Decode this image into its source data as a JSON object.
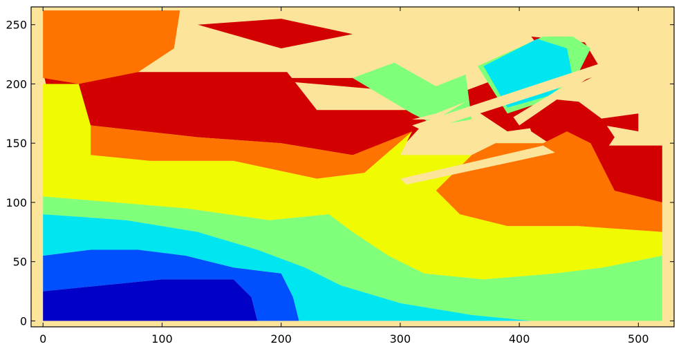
{
  "chart_data": {
    "type": "heatmap",
    "title": "",
    "xlabel": "",
    "ylabel": "",
    "xlim": [
      -10,
      530
    ],
    "ylim": [
      -5,
      265
    ],
    "grid": false,
    "x_ticks": [
      0,
      100,
      200,
      300,
      400,
      500
    ],
    "y_ticks": [
      0,
      50,
      100,
      150,
      200,
      250
    ],
    "background_color": "#fde49b",
    "colormap": "jet",
    "levels": [
      {
        "name": "level-1",
        "color": "#0000c8"
      },
      {
        "name": "level-2",
        "color": "#0050ff"
      },
      {
        "name": "level-3",
        "color": "#00e6f0"
      },
      {
        "name": "level-4",
        "color": "#80ff7a"
      },
      {
        "name": "level-5",
        "color": "#f0fa00"
      },
      {
        "name": "level-6",
        "color": "#ff7300"
      },
      {
        "name": "level-7",
        "color": "#d20000"
      }
    ],
    "regions": [
      {
        "level": 7,
        "points": [
          [
            0,
            210
          ],
          [
            205,
            210
          ],
          [
            230,
            178
          ],
          [
            330,
            178
          ],
          [
            300,
            145
          ],
          [
            260,
            140
          ],
          [
            200,
            150
          ],
          [
            130,
            155
          ],
          [
            40,
            165
          ],
          [
            5,
            190
          ]
        ]
      },
      {
        "level": 7,
        "points": [
          [
            170,
            205
          ],
          [
            300,
            205
          ],
          [
            330,
            185
          ],
          [
            410,
            215
          ],
          [
            415,
            175
          ],
          [
            500,
            160
          ],
          [
            500,
            175
          ],
          [
            390,
            160
          ],
          [
            345,
            190
          ]
        ]
      },
      {
        "level": 7,
        "points": [
          [
            130,
            250
          ],
          [
            200,
            255
          ],
          [
            260,
            242
          ],
          [
            200,
            230
          ]
        ]
      },
      {
        "level": 7,
        "points": [
          [
            400,
            190
          ],
          [
            450,
            185
          ],
          [
            470,
            170
          ],
          [
            480,
            155
          ],
          [
            470,
            140
          ],
          [
            440,
            140
          ],
          [
            410,
            160
          ]
        ]
      },
      {
        "level": 7,
        "points": [
          [
            420,
            148
          ],
          [
            520,
            148
          ],
          [
            520,
            100
          ],
          [
            470,
            100
          ],
          [
            430,
            110
          ]
        ]
      },
      {
        "level": 7,
        "points": [
          [
            410,
            240
          ],
          [
            455,
            235
          ],
          [
            470,
            210
          ],
          [
            450,
            200
          ],
          [
            430,
            215
          ]
        ]
      },
      {
        "level": 6,
        "points": [
          [
            0,
            262
          ],
          [
            115,
            262
          ],
          [
            110,
            230
          ],
          [
            80,
            210
          ],
          [
            30,
            200
          ],
          [
            0,
            205
          ]
        ]
      },
      {
        "level": 6,
        "points": [
          [
            40,
            165
          ],
          [
            130,
            155
          ],
          [
            200,
            150
          ],
          [
            260,
            140
          ],
          [
            310,
            160
          ],
          [
            270,
            125
          ],
          [
            230,
            120
          ],
          [
            160,
            135
          ],
          [
            90,
            135
          ],
          [
            40,
            140
          ]
        ]
      },
      {
        "level": 6,
        "points": [
          [
            380,
            150
          ],
          [
            420,
            150
          ],
          [
            440,
            160
          ],
          [
            460,
            150
          ],
          [
            480,
            110
          ],
          [
            520,
            100
          ],
          [
            520,
            75
          ],
          [
            450,
            80
          ],
          [
            390,
            80
          ],
          [
            350,
            90
          ],
          [
            330,
            110
          ],
          [
            360,
            140
          ]
        ]
      },
      {
        "level": 5,
        "points": [
          [
            0,
            200
          ],
          [
            30,
            200
          ],
          [
            40,
            165
          ],
          [
            40,
            140
          ],
          [
            90,
            135
          ],
          [
            160,
            135
          ],
          [
            230,
            120
          ],
          [
            270,
            125
          ],
          [
            310,
            160
          ],
          [
            300,
            140
          ],
          [
            270,
            115
          ],
          [
            240,
            90
          ],
          [
            190,
            85
          ],
          [
            120,
            95
          ],
          [
            60,
            100
          ],
          [
            0,
            105
          ]
        ]
      },
      {
        "level": 5,
        "points": [
          [
            270,
            125
          ],
          [
            300,
            140
          ],
          [
            340,
            140
          ],
          [
            360,
            140
          ],
          [
            330,
            110
          ],
          [
            350,
            90
          ],
          [
            390,
            80
          ],
          [
            450,
            80
          ],
          [
            520,
            75
          ],
          [
            520,
            55
          ],
          [
            470,
            45
          ],
          [
            430,
            40
          ],
          [
            370,
            35
          ],
          [
            320,
            40
          ],
          [
            290,
            55
          ],
          [
            260,
            75
          ],
          [
            240,
            90
          ]
        ]
      },
      {
        "level": 4,
        "points": [
          [
            0,
            105
          ],
          [
            60,
            100
          ],
          [
            120,
            95
          ],
          [
            190,
            85
          ],
          [
            240,
            90
          ],
          [
            260,
            75
          ],
          [
            290,
            55
          ],
          [
            320,
            40
          ],
          [
            370,
            35
          ],
          [
            430,
            40
          ],
          [
            470,
            45
          ],
          [
            520,
            55
          ],
          [
            520,
            0
          ],
          [
            410,
            0
          ],
          [
            360,
            5
          ],
          [
            300,
            15
          ],
          [
            250,
            30
          ],
          [
            220,
            45
          ],
          [
            180,
            60
          ],
          [
            130,
            75
          ],
          [
            70,
            85
          ],
          [
            0,
            90
          ]
        ]
      },
      {
        "level": 4,
        "points": [
          [
            260,
            205
          ],
          [
            295,
            218
          ],
          [
            330,
            198
          ],
          [
            355,
            208
          ],
          [
            360,
            170
          ],
          [
            330,
            165
          ],
          [
            310,
            175
          ]
        ]
      },
      {
        "level": 4,
        "points": [
          [
            365,
            215
          ],
          [
            420,
            240
          ],
          [
            445,
            240
          ],
          [
            460,
            230
          ],
          [
            445,
            200
          ],
          [
            420,
            185
          ],
          [
            390,
            175
          ]
        ]
      },
      {
        "level": 3,
        "points": [
          [
            0,
            90
          ],
          [
            70,
            85
          ],
          [
            130,
            75
          ],
          [
            180,
            60
          ],
          [
            220,
            45
          ],
          [
            250,
            30
          ],
          [
            300,
            15
          ],
          [
            360,
            5
          ],
          [
            410,
            0
          ],
          [
            215,
            0
          ],
          [
            210,
            20
          ],
          [
            200,
            40
          ],
          [
            160,
            45
          ],
          [
            120,
            55
          ],
          [
            80,
            60
          ],
          [
            40,
            60
          ],
          [
            0,
            55
          ]
        ]
      },
      {
        "level": 3,
        "points": [
          [
            370,
            215
          ],
          [
            415,
            238
          ],
          [
            440,
            230
          ],
          [
            445,
            205
          ],
          [
            425,
            190
          ],
          [
            390,
            180
          ]
        ]
      },
      {
        "level": 2,
        "points": [
          [
            0,
            55
          ],
          [
            40,
            60
          ],
          [
            80,
            60
          ],
          [
            120,
            55
          ],
          [
            160,
            45
          ],
          [
            200,
            40
          ],
          [
            210,
            20
          ],
          [
            215,
            0
          ],
          [
            180,
            0
          ],
          [
            175,
            20
          ],
          [
            160,
            35
          ],
          [
            100,
            35
          ],
          [
            50,
            30
          ],
          [
            0,
            25
          ]
        ]
      },
      {
        "level": 1,
        "points": [
          [
            0,
            25
          ],
          [
            50,
            30
          ],
          [
            100,
            35
          ],
          [
            160,
            35
          ],
          [
            175,
            20
          ],
          [
            180,
            0
          ],
          [
            0,
            0
          ]
        ]
      }
    ],
    "gaps": [
      {
        "points": [
          [
            310,
            170
          ],
          [
            330,
            170
          ],
          [
            355,
            185
          ],
          [
            330,
            175
          ]
        ]
      },
      {
        "points": [
          [
            310,
            165
          ],
          [
            470,
            218
          ],
          [
            475,
            210
          ],
          [
            320,
            160
          ]
        ]
      },
      {
        "points": [
          [
            300,
            120
          ],
          [
            420,
            148
          ],
          [
            430,
            142
          ],
          [
            305,
            115
          ]
        ]
      },
      {
        "points": [
          [
            395,
            172
          ],
          [
            470,
            218
          ],
          [
            465,
            210
          ],
          [
            400,
            165
          ]
        ]
      }
    ]
  }
}
